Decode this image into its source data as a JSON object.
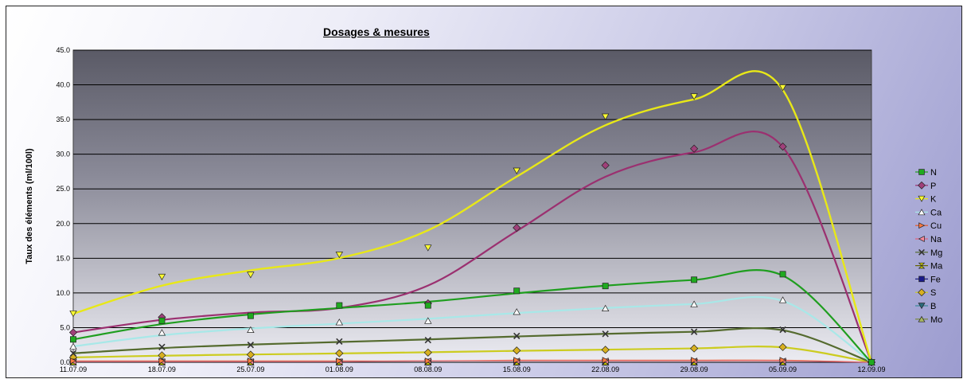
{
  "chart_data": {
    "type": "scatter",
    "title": "Dosages & mesures",
    "ylabel": "Taux des éléments (ml/100l)",
    "xlabel": "",
    "categories": [
      "11.07.09",
      "18.07.09",
      "25.07.09",
      "01.08.09",
      "08.08.09",
      "15.08.09",
      "22.08.09",
      "29.08.09",
      "05.09.09",
      "12.09.09"
    ],
    "yticks": [
      "0.0",
      "5.0",
      "10.0",
      "15.0",
      "20.0",
      "25.0",
      "30.0",
      "35.0",
      "40.0",
      "45.0"
    ],
    "ylim": [
      0,
      45
    ],
    "grid": true,
    "legend_position": "right",
    "trendlines": "smoothed",
    "series": [
      {
        "name": "N",
        "marker": "square",
        "color": "#1f9e1f",
        "fill": "#1faa1f",
        "values": [
          3.3,
          6.0,
          6.7,
          8.2,
          8.2,
          10.3,
          11.0,
          11.9,
          12.7,
          0
        ]
      },
      {
        "name": "P",
        "marker": "diamond",
        "color": "#9b3070",
        "fill": "#a0407a",
        "values": [
          4.3,
          6.5,
          null,
          null,
          8.5,
          19.4,
          28.4,
          30.8,
          31.1,
          0
        ]
      },
      {
        "name": "K",
        "marker": "triangle-down",
        "color": "#e8e817",
        "fill": "#ffff33",
        "values": [
          7.0,
          12.3,
          12.6,
          15.5,
          16.5,
          27.6,
          35.4,
          38.3,
          39.6,
          0
        ]
      },
      {
        "name": "Ca",
        "marker": "triangle-up",
        "color": "#a8e8e8",
        "fill": "#ffffff",
        "values": [
          2.3,
          4.3,
          4.7,
          5.8,
          6.0,
          7.3,
          7.8,
          8.4,
          9.0,
          0
        ]
      },
      {
        "name": "Cu",
        "marker": "triangle-right",
        "color": "#e85a2a",
        "fill": "#ff7a40",
        "values": [
          0.2,
          0.2,
          0.2,
          0.2,
          0.2,
          0.3,
          0.3,
          0.3,
          0.3,
          0
        ]
      },
      {
        "name": "Na",
        "marker": "triangle-left",
        "color": "#e0607a",
        "fill": "#ff8a9a",
        "values": [
          0.1,
          0.1,
          0.1,
          0.1,
          0.2,
          0.2,
          0.2,
          0.2,
          0.2,
          0
        ]
      },
      {
        "name": "Mg",
        "marker": "x",
        "color": "#556b2f",
        "fill": "#333333",
        "values": [
          1.3,
          2.2,
          2.5,
          3.0,
          3.2,
          3.8,
          4.1,
          4.4,
          4.7,
          0
        ]
      },
      {
        "name": "Ma",
        "marker": "hourglass",
        "color": "#666600",
        "fill": "#cccc00",
        "values": [
          0.05,
          0.05,
          0.05,
          0.05,
          0.05,
          0.05,
          0.05,
          0.05,
          0.05,
          0
        ]
      },
      {
        "name": "Fe",
        "marker": "square",
        "color": "#1a1a80",
        "fill": "#1a1a8a",
        "values": [
          0.02,
          0.02,
          0.02,
          0.02,
          0.02,
          0.02,
          0.02,
          0.02,
          0.02,
          0
        ]
      },
      {
        "name": "S",
        "marker": "diamond",
        "color": "#cccc20",
        "fill": "#d8b020",
        "values": [
          0.7,
          1.0,
          1.1,
          1.3,
          1.4,
          1.7,
          1.8,
          2.0,
          2.2,
          0
        ]
      },
      {
        "name": "B",
        "marker": "triangle-down",
        "color": "#3a8a9a",
        "fill": "#2a6a7a",
        "values": [
          0.01,
          0.01,
          0.01,
          0.01,
          0.01,
          0.01,
          0.01,
          0.01,
          0.01,
          0
        ]
      },
      {
        "name": "Mo",
        "marker": "triangle-up",
        "color": "#7a8a3a",
        "fill": "#a8b860",
        "values": [
          0.01,
          0.01,
          0.01,
          0.01,
          0.01,
          0.01,
          0.01,
          0.01,
          0.01,
          0
        ]
      }
    ]
  }
}
